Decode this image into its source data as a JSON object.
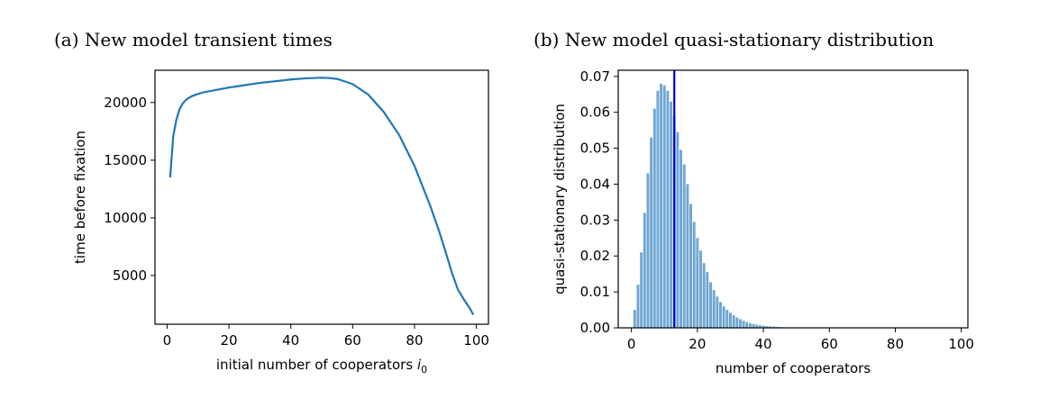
{
  "chart_data": [
    {
      "type": "line",
      "caption": "(a) New model transient times",
      "xlabel": "initial number of cooperators",
      "xlabel_symbol": "i",
      "xlabel_subscript": "0",
      "ylabel": "time before fixation",
      "xlim": [
        -3.9,
        103.9
      ],
      "ylim": [
        775,
        22800
      ],
      "xticks": [
        0,
        20,
        40,
        60,
        80,
        100
      ],
      "yticks": [
        5000,
        10000,
        15000,
        20000
      ],
      "color": "#1f77b4",
      "series": [
        {
          "x": [
            1,
            2,
            3,
            4,
            5,
            6,
            7,
            8,
            10,
            12,
            15,
            20,
            25,
            30,
            35,
            40,
            45,
            50,
            52,
            55,
            60,
            65,
            70,
            75,
            80,
            85,
            88,
            90,
            92,
            94,
            96,
            98,
            99
          ],
          "y": [
            13500,
            17100,
            18500,
            19400,
            19900,
            20200,
            20400,
            20550,
            20750,
            20900,
            21050,
            21300,
            21500,
            21700,
            21850,
            22000,
            22100,
            22150,
            22130,
            22050,
            21600,
            20700,
            19200,
            17200,
            14500,
            11100,
            8800,
            7100,
            5300,
            3800,
            2900,
            2100,
            1600
          ]
        }
      ]
    },
    {
      "type": "bar",
      "caption": "(b) New model quasi-stationary distribution",
      "xlabel": "number of cooperators",
      "ylabel": "quasi-stationary distribution",
      "xlim": [
        -4,
        102
      ],
      "ylim": [
        0,
        0.0717
      ],
      "xticks": [
        0,
        20,
        40,
        60,
        80,
        100
      ],
      "yticks": [
        0.0,
        0.01,
        0.02,
        0.03,
        0.04,
        0.05,
        0.06,
        0.07
      ],
      "ytick_labels": [
        "0.00",
        "0.01",
        "0.02",
        "0.03",
        "0.04",
        "0.05",
        "0.06",
        "0.07"
      ],
      "bar_color": "#6fa6d1",
      "vline": {
        "x": 13,
        "color": "#0000dd"
      },
      "x": [
        1,
        2,
        3,
        4,
        5,
        6,
        7,
        8,
        9,
        10,
        11,
        12,
        13,
        14,
        15,
        16,
        17,
        18,
        19,
        20,
        21,
        22,
        23,
        24,
        25,
        26,
        27,
        28,
        29,
        30,
        31,
        32,
        33,
        34,
        35,
        36,
        37,
        38,
        39,
        40,
        41,
        42,
        43,
        44,
        45,
        46,
        47,
        48,
        49,
        50,
        51,
        52,
        53,
        54,
        55,
        56,
        57,
        58,
        59,
        60,
        61,
        62,
        63,
        64,
        65,
        66,
        67,
        68,
        69,
        70,
        71,
        72,
        73,
        74,
        75,
        76,
        77,
        78,
        79,
        80,
        81,
        82,
        83,
        84,
        85,
        86,
        87,
        88,
        89,
        90,
        91,
        92,
        93,
        94,
        95,
        96,
        97,
        98,
        99
      ],
      "values": [
        0.005,
        0.012,
        0.021,
        0.032,
        0.043,
        0.053,
        0.061,
        0.066,
        0.068,
        0.0675,
        0.066,
        0.063,
        0.059,
        0.0545,
        0.0495,
        0.0455,
        0.04,
        0.0345,
        0.0295,
        0.025,
        0.0215,
        0.018,
        0.0155,
        0.0127,
        0.0105,
        0.0087,
        0.0072,
        0.006,
        0.005,
        0.0042,
        0.0035,
        0.0029,
        0.0024,
        0.002,
        0.0016,
        0.0013,
        0.0011,
        0.0009,
        0.0007,
        0.0006,
        0.0005,
        0.0004,
        0.00033,
        0.00027,
        0.00022,
        0.00018,
        0.00014,
        0.00011,
        9e-05,
        7e-05,
        6e-05,
        5e-05,
        4e-05,
        3e-05,
        2e-05,
        2e-05,
        1e-05,
        1e-05,
        1e-05,
        1e-05,
        0.0,
        0.0,
        0.0,
        0.0,
        0.0,
        0.0,
        0.0,
        0.0,
        0.0,
        0.0,
        0.0,
        0.0,
        0.0,
        0.0,
        0.0,
        0.0,
        0.0,
        0.0,
        0.0,
        0.0,
        0.0,
        0.0,
        0.0,
        0.0,
        0.0,
        0.0,
        0.0,
        0.0,
        0.0,
        0.0,
        0.0,
        0.0,
        0.0,
        0.0,
        0.0,
        0.0,
        0.0,
        0.0,
        0.0
      ]
    }
  ]
}
